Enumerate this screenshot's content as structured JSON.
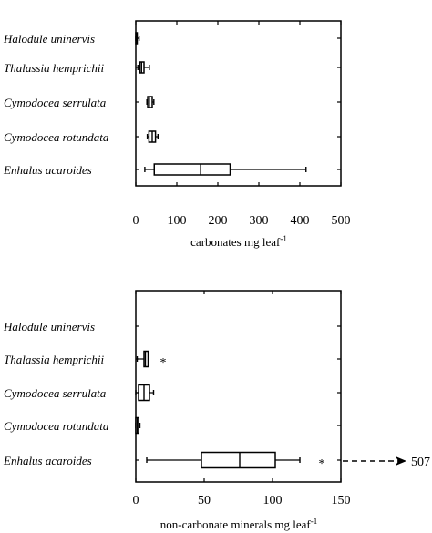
{
  "chart_data": [
    {
      "type": "boxplot",
      "orientation": "horizontal",
      "xlabel": "carbonates  mg leaf",
      "xlabel_superscript": "-1",
      "xlim": [
        0,
        500
      ],
      "xticks": [
        0,
        100,
        200,
        300,
        400,
        500
      ],
      "categories": [
        "Halodule uninervis",
        "Thalassia hemprichii",
        "Cymodocea serrulata",
        "Cymodocea rotundata",
        "Enhalus acaroides"
      ],
      "boxes": [
        {
          "whisker_low": 0,
          "q1": 0,
          "median": 1,
          "q3": 2,
          "whisker_high": 8,
          "outliers": []
        },
        {
          "whisker_low": 5,
          "q1": 10,
          "median": 14,
          "q3": 20,
          "whisker_high": 33,
          "outliers": []
        },
        {
          "whisker_low": 27,
          "q1": 29,
          "median": 33,
          "q3": 40,
          "whisker_high": 44,
          "outliers": []
        },
        {
          "whisker_low": 28,
          "q1": 32,
          "median": 40,
          "q3": 48,
          "whisker_high": 54,
          "outliers": []
        },
        {
          "whisker_low": 22,
          "q1": 45,
          "median": 158,
          "q3": 230,
          "whisker_high": 415,
          "outliers": []
        }
      ]
    },
    {
      "type": "boxplot",
      "orientation": "horizontal",
      "xlabel": "non-carbonate minerals  mg leaf",
      "xlabel_superscript": "-1",
      "xlim": [
        0,
        150
      ],
      "xticks": [
        0,
        50,
        100,
        150
      ],
      "categories": [
        "Halodule uninervis",
        "Thalassia hemprichii",
        "Cymodocea serrulata",
        "Cymodocea rotundata",
        "Enhalus acaroides"
      ],
      "boxes": [
        null,
        {
          "whisker_low": 1,
          "q1": 6,
          "median": 7,
          "q3": 9,
          "whisker_high": 9,
          "outliers": [
            20
          ]
        },
        {
          "whisker_low": 0,
          "q1": 2,
          "median": 6,
          "q3": 10,
          "whisker_high": 13,
          "outliers": []
        },
        {
          "whisker_low": 0,
          "q1": 0,
          "median": 1,
          "q3": 2,
          "whisker_high": 3,
          "outliers": []
        },
        {
          "whisker_low": 8,
          "q1": 48,
          "median": 76,
          "q3": 102,
          "whisker_high": 120,
          "outliers": [
            136
          ]
        }
      ],
      "offscale_note": "507"
    }
  ]
}
